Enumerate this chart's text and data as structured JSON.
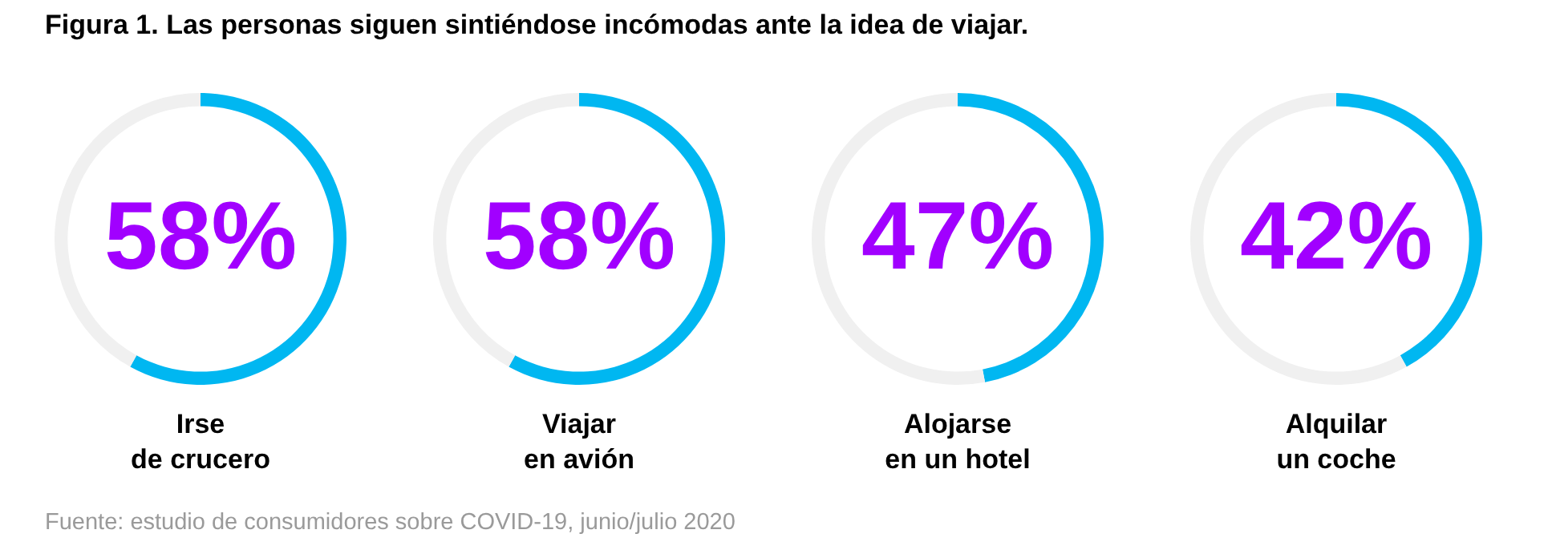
{
  "chart_data": [
    {
      "type": "other",
      "title": "Figura 1. Las personas siguen sintiéndose incómodas ante la idea de viajar."
    },
    {
      "type": "donut",
      "xlabel": "Irse\nde crucero",
      "categories": [
        null,
        null
      ],
      "values": [
        58,
        42
      ],
      "colors": [
        "#00b7f1",
        "#f0f0f0"
      ],
      "value_labels": [
        "58%",
        null
      ]
    },
    {
      "type": "donut",
      "xlabel": "Viajar\nen avión",
      "categories": [
        null,
        null
      ],
      "values": [
        58,
        42
      ],
      "colors": [
        "#00b7f1",
        "#f0f0f0"
      ],
      "value_labels": [
        "58%",
        null
      ]
    },
    {
      "type": "donut",
      "xlabel": "Alojarse\nen un hotel",
      "categories": [
        null,
        null
      ],
      "values": [
        47,
        53
      ],
      "colors": [
        "#00b7f1",
        "#f0f0f0"
      ],
      "value_labels": [
        "47%",
        null
      ]
    },
    {
      "type": "donut",
      "xlabel": "Alquilar\nun coche",
      "categories": [
        null,
        null
      ],
      "values": [
        42,
        58
      ],
      "colors": [
        "#00b7f1",
        "#f0f0f0"
      ],
      "value_labels": [
        "42%",
        null
      ]
    },
    {
      "type": "other",
      "annotations": [
        "Fuente: estudio de consumidores sobre COVID-19, junio/julio 2020"
      ]
    }
  ]
}
